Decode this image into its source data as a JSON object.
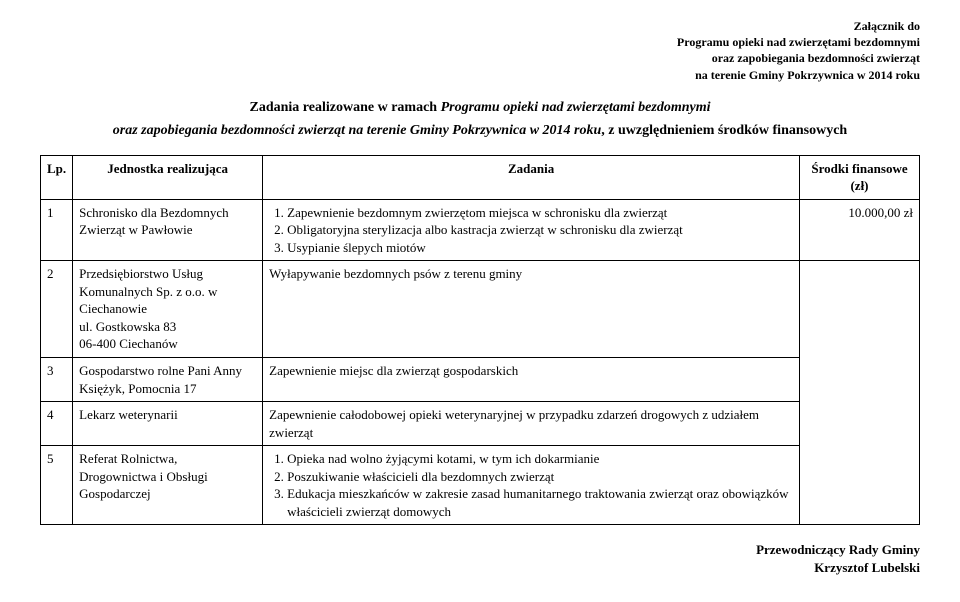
{
  "header": {
    "line1": "Załącznik do",
    "line2": "Programu opieki nad zwierzętami bezdomnymi",
    "line3": "oraz zapobiegania bezdomności zwierząt",
    "line4": "na terenie Gminy Pokrzywnica w 2014 roku"
  },
  "title": {
    "prefix": "Zadania realizowane w ramach ",
    "italic": "Programu opieki nad zwierzętami bezdomnymi"
  },
  "subtitle": {
    "prefix_italic_bold": "oraz zapobiegania bezdomności zwierząt  na terenie Gminy Pokrzywnica w 2014 roku",
    "suffix_bold": ", z uwzględnieniem środków finansowych"
  },
  "table": {
    "headers": {
      "lp": "Lp.",
      "unit": "Jednostka realizująca",
      "task": "Zadania",
      "funds": "Środki finansowe (zł)"
    },
    "rows": [
      {
        "lp": "1",
        "unit": "Schronisko dla Bezdomnych Zwierząt w Pawłowie",
        "task_items": [
          "Zapewnienie bezdomnym zwierzętom miejsca w schronisku dla zwierząt",
          "Obligatoryjna sterylizacja albo kastracja zwierząt w schronisku dla zwierząt",
          "Usypianie ślepych miotów"
        ],
        "funds": "10.000,00 zł"
      },
      {
        "lp": "2",
        "unit": "Przedsiębiorstwo Usług Komunalnych Sp. z o.o. w Ciechanowie\nul. Gostkowska 83\n06-400 Ciechanów",
        "task_text": "Wyłapywanie bezdomnych psów z terenu gminy"
      },
      {
        "lp": "3",
        "unit": "Gospodarstwo rolne Pani Anny Księżyk, Pomocnia 17",
        "task_text": "Zapewnienie miejsc dla zwierząt gospodarskich"
      },
      {
        "lp": "4",
        "unit": "Lekarz weterynarii",
        "task_text": "Zapewnienie całodobowej opieki weterynaryjnej w przypadku zdarzeń drogowych z udziałem zwierząt"
      },
      {
        "lp": "5",
        "unit": "Referat Rolnictwa, Drogownictwa i Obsługi Gospodarczej",
        "task_items": [
          "Opieka nad wolno żyjącymi kotami, w tym ich dokarmianie",
          "Poszukiwanie właścicieli dla bezdomnych zwierząt",
          "Edukacja mieszkańców w zakresie zasad humanitarnego traktowania zwierząt oraz obowiązków właścicieli zwierząt domowych"
        ]
      }
    ]
  },
  "footer": {
    "line1": "Przewodniczący Rady Gminy",
    "line2": "Krzysztof Lubelski"
  }
}
